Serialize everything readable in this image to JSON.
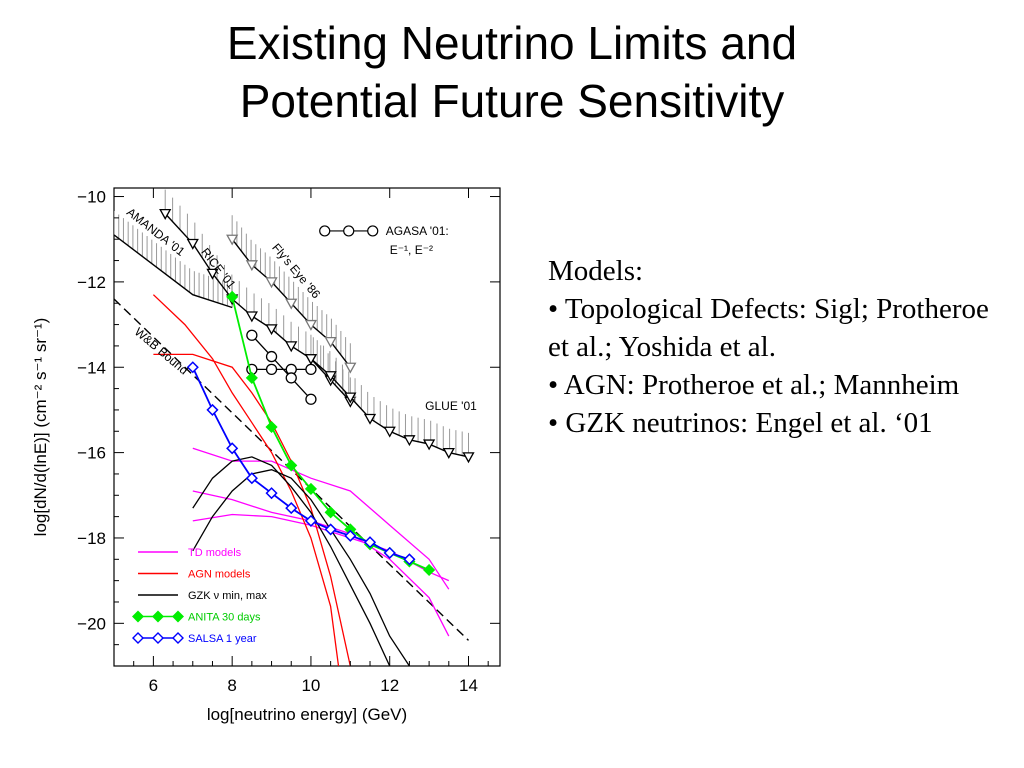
{
  "slide": {
    "title_line1": "Existing Neutrino Limits and",
    "title_line2": "Potential Future Sensitivity"
  },
  "models_text": {
    "heading": "Models:",
    "bullets": [
      "• Topological Defects: Sigl; Protheroe et al.; Yoshida et al.",
      "• AGN: Protheroe et al.; Mannheim",
      "• GZK neutrinos: Engel et al. ‘01"
    ]
  },
  "chart_data": {
    "type": "line",
    "xlabel": "log[neutrino energy] (GeV)",
    "ylabel": "log[dN/d(lnE)] (cm⁻² s⁻¹ sr⁻¹)",
    "xlim": [
      5,
      14.8
    ],
    "ylim": [
      -21,
      -9.8
    ],
    "xticks": [
      6,
      8,
      10,
      12,
      14
    ],
    "yticks": [
      -10,
      -12,
      -14,
      -16,
      -18,
      -20
    ],
    "xtick_labels": [
      "6",
      "8",
      "10",
      "12",
      "14"
    ],
    "ytick_labels": [
      "−10",
      "−12",
      "−14",
      "−16",
      "−18",
      "−20"
    ],
    "grid": false,
    "limit_labels": [
      {
        "text": "AMANDA '01",
        "x": 5.3,
        "y": -10.4
      },
      {
        "text": "RICE '01",
        "x": 7.2,
        "y": -11.3
      },
      {
        "text": "Fly's Eye '86",
        "x": 9.0,
        "y": -11.2
      },
      {
        "text": "W&B Bound",
        "x": 5.5,
        "y": -13.2
      },
      {
        "text": "GLUE '01",
        "x": 12.9,
        "y": -15.0
      },
      {
        "text": "AGASA '01:",
        "x": 11.9,
        "y": -10.9
      },
      {
        "text": "E⁻¹, E⁻²",
        "x": 12.0,
        "y": -11.35
      }
    ],
    "legend": {
      "position": "bottom-left",
      "entries": [
        {
          "label": "TD models",
          "color": "#ff00ff",
          "marker": "none"
        },
        {
          "label": "AGN models",
          "color": "#ff0000",
          "marker": "none"
        },
        {
          "label": "GZK ν min, max",
          "color": "#000000",
          "marker": "none"
        },
        {
          "label": "ANITA 30 days",
          "color": "#00ee00",
          "marker": "diamond-filled"
        },
        {
          "label": "SALSA 1 year",
          "color": "#0000ff",
          "marker": "diamond-open"
        }
      ]
    },
    "limits": [
      {
        "name": "AMANDA '01",
        "color": "#000000",
        "hatch": true,
        "x": [
          5,
          6,
          7,
          8
        ],
        "y": [
          -10.9,
          -11.6,
          -12.3,
          -12.6
        ]
      },
      {
        "name": "RICE '01",
        "color": "#000000",
        "hatch": true,
        "marker": "triangle-down",
        "x": [
          6.3,
          7,
          7.5,
          8,
          8.5,
          9,
          9.5,
          10,
          10.5,
          11
        ],
        "y": [
          -10.4,
          -11.1,
          -11.8,
          -12.4,
          -12.8,
          -13.1,
          -13.5,
          -13.8,
          -14.3,
          -14.8
        ]
      },
      {
        "name": "Fly's Eye '86",
        "color": "#000000",
        "hatch": true,
        "marker": "triangle-down-open",
        "x": [
          8,
          8.5,
          9,
          9.5,
          10,
          10.5,
          11
        ],
        "y": [
          -11.0,
          -11.6,
          -12.0,
          -12.5,
          -13.0,
          -13.4,
          -14.0
        ]
      },
      {
        "name": "GLUE '01",
        "color": "#000000",
        "hatch": true,
        "marker": "triangle-down",
        "x": [
          10,
          10.5,
          11,
          11.5,
          12,
          12.5,
          13,
          13.5,
          14
        ],
        "y": [
          -13.8,
          -14.2,
          -14.7,
          -15.2,
          -15.5,
          -15.7,
          -15.8,
          -16.0,
          -16.1
        ]
      },
      {
        "name": "W&B Bound",
        "color": "#000000",
        "style": "dashed",
        "x": [
          5,
          14
        ],
        "y": [
          -12.4,
          -20.4
        ]
      }
    ],
    "agasa": {
      "name": "AGASA '01",
      "e1": {
        "x": [
          8.5,
          9,
          9.5,
          10
        ],
        "y": [
          -14.05,
          -14.05,
          -14.05,
          -14.05
        ]
      },
      "e2": {
        "x": [
          8.5,
          9,
          9.5,
          10
        ],
        "y": [
          -13.25,
          -13.75,
          -14.25,
          -14.75
        ]
      }
    },
    "series": [
      {
        "group": "TD models",
        "color": "#ff00ff",
        "x": [
          7,
          8,
          9,
          10,
          11,
          12,
          13,
          13.5
        ],
        "y": [
          -15.9,
          -16.2,
          -16.2,
          -16.6,
          -16.9,
          -17.7,
          -18.5,
          -19.2
        ]
      },
      {
        "group": "TD models",
        "color": "#ff00ff",
        "x": [
          7,
          8,
          9,
          10,
          11,
          12,
          13,
          13.5
        ],
        "y": [
          -17.6,
          -17.45,
          -17.5,
          -17.7,
          -18.0,
          -18.3,
          -18.8,
          -19.0
        ]
      },
      {
        "group": "TD models",
        "color": "#ff00ff",
        "x": [
          7,
          8,
          9,
          10,
          11,
          12,
          13,
          13.5
        ],
        "y": [
          -16.9,
          -17.1,
          -17.4,
          -17.6,
          -17.9,
          -18.5,
          -19.4,
          -20.3
        ]
      },
      {
        "group": "AGN models",
        "color": "#ff0000",
        "x": [
          6,
          6.8,
          7.5,
          8,
          8.5,
          9,
          9.5,
          10,
          10.5,
          10.7
        ],
        "y": [
          -12.3,
          -13.0,
          -13.8,
          -14.6,
          -15.3,
          -16.0,
          -16.9,
          -18.0,
          -19.6,
          -21.0
        ]
      },
      {
        "group": "AGN models",
        "color": "#ff0000",
        "x": [
          6,
          7,
          8,
          8.5,
          9,
          9.5,
          10,
          10.5,
          11
        ],
        "y": [
          -13.7,
          -13.7,
          -14.0,
          -14.6,
          -15.3,
          -16.2,
          -17.3,
          -18.9,
          -21.0
        ]
      },
      {
        "group": "GZK ν min, max",
        "color": "#000000",
        "x": [
          7,
          7.5,
          8,
          8.5,
          9,
          9.5,
          10,
          10.5,
          11,
          11.5,
          12,
          12.5
        ],
        "y": [
          -18.3,
          -17.5,
          -16.9,
          -16.5,
          -16.4,
          -16.6,
          -17.1,
          -17.8,
          -18.5,
          -19.3,
          -20.3,
          -21.0
        ]
      },
      {
        "group": "GZK ν min, max",
        "color": "#000000",
        "x": [
          7,
          7.5,
          8,
          8.5,
          9,
          9.5,
          10,
          10.5,
          11,
          11.5,
          12
        ],
        "y": [
          -17.3,
          -16.6,
          -16.2,
          -16.1,
          -16.3,
          -16.8,
          -17.4,
          -18.2,
          -19.1,
          -20.0,
          -21.0
        ]
      },
      {
        "group": "ANITA 30 days",
        "color": "#00ee00",
        "marker": "diamond-filled",
        "x": [
          8,
          8.5,
          9,
          9.5,
          10,
          10.5,
          11,
          11.5,
          12,
          12.5,
          13
        ],
        "y": [
          -12.35,
          -14.25,
          -15.4,
          -16.3,
          -16.85,
          -17.4,
          -17.8,
          -18.15,
          -18.35,
          -18.55,
          -18.75
        ]
      },
      {
        "group": "SALSA 1 year",
        "color": "#0000ff",
        "marker": "diamond-open",
        "x": [
          7,
          7.5,
          8,
          8.5,
          9,
          9.5,
          10,
          10.5,
          11,
          11.5,
          12,
          12.5
        ],
        "y": [
          -14.0,
          -15.0,
          -15.9,
          -16.6,
          -16.95,
          -17.3,
          -17.6,
          -17.8,
          -17.95,
          -18.1,
          -18.35,
          -18.5
        ]
      }
    ]
  }
}
